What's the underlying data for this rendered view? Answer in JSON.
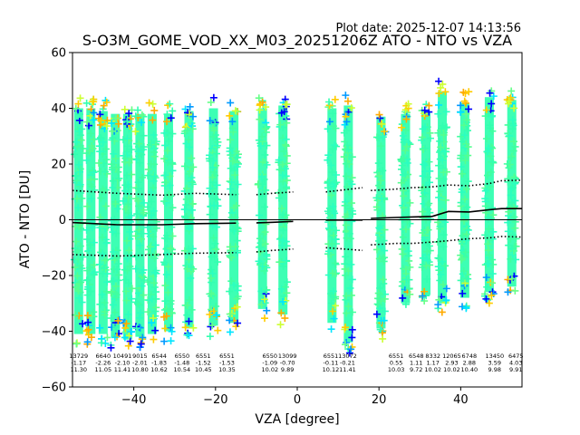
{
  "plot_date": "Plot date: 2025-12-07 14:13:56",
  "chart_data": {
    "type": "scatter",
    "title": "S-O3M_GOME_VOD_XX_M03_20251206Z ATO - NTO vs VZA",
    "xlabel": "VZA [degree]",
    "ylabel": "ATO - NTO [DU]",
    "xlim": [
      -55,
      55
    ],
    "ylim": [
      -60,
      60
    ],
    "xticks": [
      -40,
      -20,
      0,
      20,
      40
    ],
    "yticks": [
      -60,
      -40,
      -20,
      0,
      20,
      40,
      60
    ],
    "grid": false,
    "marker": "+",
    "color_scale": [
      "#0000ff",
      "#0099ff",
      "#00e5ff",
      "#33ffb0",
      "#66ff88",
      "#ccff33",
      "#ffcc00",
      "#ffaa00"
    ],
    "scatter_columns": [
      {
        "x": -53.5,
        "ymin": -45,
        "ymax": 44
      },
      {
        "x": -50.5,
        "ymin": -45,
        "ymax": 44
      },
      {
        "x": -47.5,
        "ymin": -45,
        "ymax": 43
      },
      {
        "x": -44.5,
        "ymin": -46,
        "ymax": 42
      },
      {
        "x": -41.5,
        "ymin": -47,
        "ymax": 42
      },
      {
        "x": -38.5,
        "ymin": -46,
        "ymax": 42
      },
      {
        "x": -35.5,
        "ymin": -45,
        "ymax": 42
      },
      {
        "x": -31.5,
        "ymin": -44,
        "ymax": 42
      },
      {
        "x": -26.5,
        "ymin": -43,
        "ymax": 43
      },
      {
        "x": -20.5,
        "ymin": -42,
        "ymax": 44
      },
      {
        "x": -15.5,
        "ymin": -41,
        "ymax": 43
      },
      {
        "x": -8.5,
        "ymin": -36,
        "ymax": 44
      },
      {
        "x": -3.5,
        "ymin": -38,
        "ymax": 45
      },
      {
        "x": 8.5,
        "ymin": -41,
        "ymax": 44
      },
      {
        "x": 12.5,
        "ymin": -48,
        "ymax": 45
      },
      {
        "x": 20.5,
        "ymin": -43,
        "ymax": 41
      },
      {
        "x": 26.5,
        "ymin": -34,
        "ymax": 42
      },
      {
        "x": 31.5,
        "ymin": -31,
        "ymax": 43
      },
      {
        "x": 35.5,
        "ymin": -34,
        "ymax": 50
      },
      {
        "x": 41.0,
        "ymin": -32,
        "ymax": 46
      },
      {
        "x": 47.0,
        "ymin": -30,
        "ymax": 48
      },
      {
        "x": 52.5,
        "ymin": -28,
        "ymax": 47
      }
    ],
    "series": [
      {
        "name": "mean",
        "style": "solid",
        "segments": [
          [
            [
              -55,
              -1
            ],
            [
              -44,
              -1.8
            ],
            [
              -33,
              -1.8
            ],
            [
              -25,
              -1.4
            ],
            [
              -15,
              -1.2
            ]
          ],
          [
            [
              -10,
              -1.1
            ],
            [
              -6,
              -0.9
            ],
            [
              -1,
              -0.6
            ]
          ],
          [
            [
              7,
              -0.1
            ],
            [
              16,
              -0.1
            ]
          ],
          [
            [
              18,
              0.5
            ],
            [
              24,
              0.8
            ],
            [
              28,
              1.0
            ],
            [
              33,
              1.2
            ],
            [
              37,
              3.0
            ],
            [
              42,
              2.8
            ],
            [
              47,
              3.6
            ],
            [
              50,
              4.0
            ],
            [
              55,
              4.0
            ]
          ]
        ]
      },
      {
        "name": "mean + stdev",
        "style": "dotted",
        "segments": [
          [
            [
              -55,
              10.5
            ],
            [
              -44,
              9.5
            ],
            [
              -33,
              8.8
            ],
            [
              -25,
              9.5
            ],
            [
              -15,
              9.0
            ]
          ],
          [
            [
              -10,
              9.0
            ],
            [
              -6,
              9.5
            ],
            [
              -1,
              10.0
            ]
          ],
          [
            [
              7,
              10.0
            ],
            [
              16,
              11.5
            ]
          ],
          [
            [
              18,
              10.5
            ],
            [
              24,
              11.0
            ],
            [
              28,
              11.5
            ],
            [
              33,
              11.8
            ],
            [
              37,
              12.5
            ],
            [
              42,
              12.2
            ],
            [
              47,
              13.0
            ],
            [
              50,
              14.0
            ],
            [
              55,
              14.2
            ]
          ]
        ]
      },
      {
        "name": "mean - stdev",
        "style": "dotted",
        "segments": [
          [
            [
              -55,
              -12.5
            ],
            [
              -44,
              -13.0
            ],
            [
              -33,
              -12.5
            ],
            [
              -25,
              -12.0
            ],
            [
              -15,
              -11.8
            ]
          ],
          [
            [
              -10,
              -11.5
            ],
            [
              -6,
              -11.0
            ],
            [
              -1,
              -10.5
            ]
          ],
          [
            [
              7,
              -10.0
            ],
            [
              16,
              -11.0
            ]
          ],
          [
            [
              18,
              -9.0
            ],
            [
              24,
              -8.5
            ],
            [
              28,
              -8.5
            ],
            [
              33,
              -8.0
            ],
            [
              37,
              -7.5
            ],
            [
              42,
              -6.8
            ],
            [
              47,
              -6.5
            ],
            [
              50,
              -6.0
            ],
            [
              55,
              -6.2
            ]
          ]
        ]
      }
    ],
    "annotations": [
      {
        "x": -53.5,
        "lines": [
          "13729",
          "-1.17",
          "11.30"
        ]
      },
      {
        "x": -47.5,
        "lines": [
          "6640",
          "-2.26",
          "11.05"
        ]
      },
      {
        "x": -42.8,
        "lines": [
          "10491",
          "-2.10",
          "11.41"
        ]
      },
      {
        "x": -38.5,
        "lines": [
          "9015",
          "-2.01",
          "10.80"
        ]
      },
      {
        "x": -33.8,
        "lines": [
          "6544",
          "-1.83",
          "10.62"
        ]
      },
      {
        "x": -28.2,
        "lines": [
          "6550",
          "-1.48",
          "10.54"
        ]
      },
      {
        "x": -23.0,
        "lines": [
          "6551",
          "-1.52",
          "10.45"
        ]
      },
      {
        "x": -17.2,
        "lines": [
          "6551",
          "-1.53",
          "10.35"
        ]
      },
      {
        "x": -6.7,
        "lines": [
          "6550",
          "-1.09",
          "10.02"
        ]
      },
      {
        "x": -2.4,
        "lines": [
          "13099",
          "-0.70",
          "9.89"
        ]
      },
      {
        "x": 8.2,
        "lines": [
          "6551",
          "-0.11",
          "10.12"
        ]
      },
      {
        "x": 12.3,
        "lines": [
          "13072",
          "-0.21",
          "11.41"
        ]
      },
      {
        "x": 24.2,
        "lines": [
          "6551",
          "0.55",
          "10.03"
        ]
      },
      {
        "x": 29.1,
        "lines": [
          "6548",
          "1.11",
          "9.72"
        ]
      },
      {
        "x": 33.2,
        "lines": [
          "8332",
          "1.17",
          "10.02"
        ]
      },
      {
        "x": 37.8,
        "lines": [
          "12065",
          "2.93",
          "10.02"
        ]
      },
      {
        "x": 42.1,
        "lines": [
          "6748",
          "2.88",
          "10.40"
        ]
      },
      {
        "x": 48.3,
        "lines": [
          "13450",
          "3.59",
          "9.98"
        ]
      },
      {
        "x": 53.5,
        "lines": [
          "6475",
          "4.03",
          "9.91"
        ]
      }
    ]
  }
}
